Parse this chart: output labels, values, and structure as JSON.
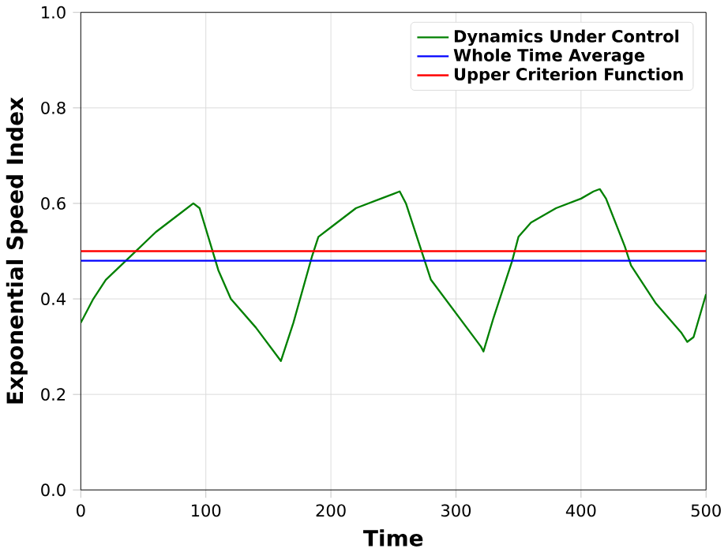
{
  "chart_data": {
    "type": "line",
    "xlabel": "Time",
    "ylabel": "Exponential Speed Index",
    "xlim": [
      0,
      500
    ],
    "ylim": [
      0,
      1
    ],
    "xticks": [
      0,
      100,
      200,
      300,
      400,
      500
    ],
    "yticks": [
      {
        "value": 0,
        "label": "0.0"
      },
      0.2,
      0.4,
      0.6,
      0.8,
      {
        "value": 1,
        "label": "1.0"
      }
    ],
    "grid": true,
    "legend": "top right",
    "series": [
      {
        "name": "Dynamics Under Control",
        "color": "#008000",
        "x": [
          0,
          10,
          20,
          40,
          60,
          80,
          90,
          95,
          110,
          120,
          140,
          160,
          170,
          185,
          190,
          200,
          220,
          240,
          250,
          255,
          260,
          275,
          280,
          300,
          320,
          322,
          330,
          345,
          350,
          360,
          380,
          400,
          410,
          415,
          420,
          435,
          440,
          460,
          480,
          485,
          490,
          500
        ],
        "values": [
          0.35,
          0.4,
          0.44,
          0.49,
          0.54,
          0.58,
          0.6,
          0.59,
          0.46,
          0.4,
          0.34,
          0.27,
          0.35,
          0.49,
          0.53,
          0.55,
          0.59,
          0.61,
          0.62,
          0.625,
          0.6,
          0.48,
          0.44,
          0.37,
          0.3,
          0.29,
          0.36,
          0.48,
          0.53,
          0.56,
          0.59,
          0.61,
          0.625,
          0.63,
          0.61,
          0.51,
          0.47,
          0.39,
          0.33,
          0.31,
          0.32,
          0.41
        ]
      },
      {
        "name": "Whole Time Average",
        "color": "#0000ff",
        "x": [
          0,
          500
        ],
        "values": [
          0.48,
          0.48
        ]
      },
      {
        "name": "Upper Criterion Function",
        "color": "#ff0000",
        "x": [
          0,
          500
        ],
        "values": [
          0.5,
          0.5
        ]
      }
    ]
  }
}
